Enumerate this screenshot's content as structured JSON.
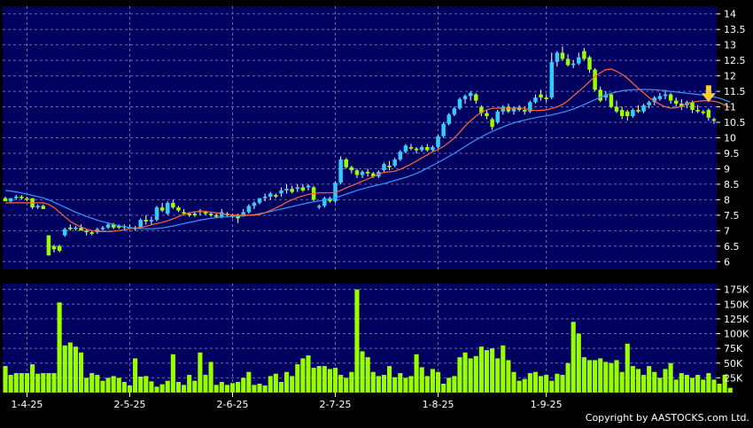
{
  "chart_data": [
    {
      "type": "candlestick",
      "title": "",
      "ylabel": "",
      "ylim": [
        5.75,
        14.25
      ],
      "y_ticks": [
        "14",
        "13.5",
        "13",
        "12.5",
        "12",
        "11.5",
        "11",
        "10.5",
        "10",
        "9.5",
        "9",
        "8.5",
        "8",
        "7.5",
        "7",
        "6.5",
        "6"
      ],
      "x_tick_labels": [
        "1-4-25",
        "2-5-25",
        "2-6-25",
        "2-7-25",
        "1-8-25",
        "1-9-25"
      ],
      "grid": true,
      "colors": {
        "background": "#000060",
        "up": "#33ccff",
        "down": "#99ff00",
        "ma_short": "#ff6633",
        "ma_long": "#3399ff",
        "grid": "#6a6aa8"
      },
      "candles": [
        [
          8.05,
          8.1,
          7.95,
          7.95
        ],
        [
          7.95,
          8.05,
          7.9,
          8.05
        ],
        [
          8.05,
          8.15,
          8.0,
          8.1
        ],
        [
          8.1,
          8.15,
          8.0,
          8.05
        ],
        [
          8.05,
          8.1,
          7.95,
          8.0
        ],
        [
          8.05,
          8.0,
          7.7,
          7.75
        ],
        [
          7.75,
          7.85,
          7.7,
          7.8
        ],
        [
          7.8,
          7.85,
          7.7,
          7.7
        ],
        [
          6.85,
          6.8,
          6.2,
          6.2
        ],
        [
          6.5,
          6.55,
          6.3,
          6.4
        ],
        [
          6.5,
          6.55,
          6.3,
          6.35
        ],
        [
          6.85,
          7.1,
          6.8,
          7.05
        ],
        [
          7.1,
          7.2,
          7.0,
          7.05
        ],
        [
          7.05,
          7.15,
          7.0,
          7.1
        ],
        [
          7.1,
          7.2,
          7.0,
          7.0
        ],
        [
          7.0,
          7.05,
          6.85,
          6.95
        ],
        [
          6.95,
          7.0,
          6.85,
          6.9
        ],
        [
          6.95,
          7.1,
          6.9,
          7.05
        ],
        [
          7.05,
          7.15,
          7.0,
          7.1
        ],
        [
          7.1,
          7.25,
          7.05,
          7.2
        ],
        [
          7.2,
          7.25,
          7.05,
          7.1
        ],
        [
          7.15,
          7.2,
          7.05,
          7.1
        ],
        [
          7.1,
          7.2,
          7.0,
          7.15
        ],
        [
          7.1,
          7.2,
          7.05,
          7.1
        ],
        [
          7.1,
          7.15,
          7.0,
          7.05
        ],
        [
          7.1,
          7.4,
          7.05,
          7.35
        ],
        [
          7.35,
          7.5,
          7.2,
          7.3
        ],
        [
          7.3,
          7.45,
          7.2,
          7.35
        ],
        [
          7.35,
          7.8,
          7.3,
          7.75
        ],
        [
          7.75,
          7.9,
          7.6,
          7.65
        ],
        [
          7.55,
          7.95,
          7.5,
          7.9
        ],
        [
          7.9,
          8.0,
          7.7,
          7.75
        ],
        [
          7.75,
          7.8,
          7.6,
          7.65
        ],
        [
          7.6,
          7.7,
          7.5,
          7.55
        ],
        [
          7.55,
          7.6,
          7.45,
          7.5
        ],
        [
          7.55,
          7.6,
          7.45,
          7.5
        ],
        [
          7.6,
          7.7,
          7.5,
          7.65
        ],
        [
          7.6,
          7.65,
          7.5,
          7.55
        ],
        [
          7.55,
          7.6,
          7.45,
          7.5
        ],
        [
          7.5,
          7.55,
          7.4,
          7.45
        ],
        [
          7.45,
          7.7,
          7.4,
          7.6
        ],
        [
          7.55,
          7.6,
          7.45,
          7.5
        ],
        [
          7.5,
          7.55,
          7.4,
          7.5
        ],
        [
          7.5,
          7.55,
          7.25,
          7.4
        ],
        [
          7.5,
          7.7,
          7.45,
          7.6
        ],
        [
          7.6,
          7.85,
          7.55,
          7.8
        ],
        [
          7.8,
          7.95,
          7.7,
          7.9
        ],
        [
          7.9,
          8.05,
          7.85,
          8.05
        ],
        [
          8.05,
          8.2,
          7.95,
          8.1
        ],
        [
          8.1,
          8.25,
          8.0,
          8.2
        ],
        [
          8.15,
          8.2,
          8.05,
          8.1
        ],
        [
          8.2,
          8.4,
          8.1,
          8.3
        ],
        [
          8.3,
          8.5,
          8.2,
          8.35
        ],
        [
          8.35,
          8.45,
          8.2,
          8.25
        ],
        [
          8.35,
          8.5,
          8.25,
          8.4
        ],
        [
          8.4,
          8.5,
          8.25,
          8.3
        ],
        [
          8.4,
          8.5,
          8.3,
          8.45
        ],
        [
          8.4,
          8.45,
          7.95,
          8.0
        ],
        [
          7.8,
          7.85,
          7.7,
          7.8
        ],
        [
          7.8,
          8.1,
          7.75,
          8.05
        ],
        [
          8.05,
          8.1,
          7.9,
          7.95
        ],
        [
          7.95,
          8.6,
          7.9,
          8.55
        ],
        [
          8.55,
          9.4,
          8.5,
          9.3
        ],
        [
          9.3,
          9.35,
          9.0,
          9.05
        ],
        [
          9.05,
          9.1,
          8.85,
          8.95
        ],
        [
          8.95,
          9.0,
          8.7,
          8.8
        ],
        [
          8.8,
          8.95,
          8.7,
          8.9
        ],
        [
          8.9,
          9.0,
          8.75,
          8.85
        ],
        [
          8.85,
          8.9,
          8.7,
          8.75
        ],
        [
          8.75,
          8.95,
          8.7,
          8.9
        ],
        [
          8.95,
          9.2,
          8.9,
          9.15
        ],
        [
          9.1,
          9.25,
          8.95,
          9.05
        ],
        [
          9.1,
          9.35,
          9.05,
          9.3
        ],
        [
          9.3,
          9.6,
          9.25,
          9.55
        ],
        [
          9.55,
          9.8,
          9.5,
          9.75
        ],
        [
          9.7,
          9.8,
          9.6,
          9.65
        ],
        [
          9.65,
          9.7,
          9.5,
          9.6
        ],
        [
          9.6,
          9.75,
          9.55,
          9.7
        ],
        [
          9.7,
          9.8,
          9.55,
          9.6
        ],
        [
          9.6,
          9.75,
          9.55,
          9.7
        ],
        [
          9.7,
          10.1,
          9.65,
          10.05
        ],
        [
          10.05,
          10.5,
          10.0,
          10.45
        ],
        [
          10.45,
          10.8,
          10.4,
          10.75
        ],
        [
          10.75,
          11.0,
          10.7,
          10.95
        ],
        [
          10.95,
          11.3,
          10.9,
          11.25
        ],
        [
          11.25,
          11.4,
          11.1,
          11.35
        ],
        [
          11.35,
          11.5,
          11.2,
          11.45
        ],
        [
          11.4,
          11.45,
          11.1,
          11.2
        ],
        [
          11.0,
          11.05,
          10.7,
          10.8
        ],
        [
          10.8,
          10.9,
          10.6,
          10.7
        ],
        [
          10.6,
          10.65,
          10.25,
          10.35
        ],
        [
          10.5,
          10.9,
          10.45,
          10.85
        ],
        [
          10.85,
          11.05,
          10.75,
          11.0
        ],
        [
          11.0,
          11.1,
          10.8,
          10.85
        ],
        [
          10.85,
          11.0,
          10.75,
          10.95
        ],
        [
          10.95,
          11.05,
          10.85,
          10.9
        ],
        [
          10.9,
          11.0,
          10.75,
          10.85
        ],
        [
          10.85,
          11.2,
          10.8,
          11.15
        ],
        [
          11.15,
          11.4,
          11.1,
          11.3
        ],
        [
          11.4,
          11.55,
          11.2,
          11.3
        ],
        [
          11.3,
          11.4,
          11.15,
          11.25
        ],
        [
          11.3,
          12.75,
          11.25,
          12.45
        ],
        [
          12.45,
          12.8,
          12.3,
          12.75
        ],
        [
          12.75,
          12.95,
          12.5,
          12.55
        ],
        [
          12.55,
          12.7,
          12.3,
          12.35
        ],
        [
          12.35,
          12.5,
          12.25,
          12.4
        ],
        [
          12.4,
          12.75,
          12.35,
          12.6
        ],
        [
          12.8,
          12.9,
          12.5,
          12.55
        ],
        [
          12.6,
          12.65,
          12.1,
          12.2
        ],
        [
          12.2,
          12.25,
          11.5,
          11.55
        ],
        [
          11.55,
          11.65,
          11.15,
          11.2
        ],
        [
          11.3,
          11.5,
          11.2,
          11.4
        ],
        [
          11.4,
          11.45,
          10.95,
          11.0
        ],
        [
          11.0,
          11.2,
          10.8,
          10.85
        ],
        [
          10.9,
          11.0,
          10.6,
          10.7
        ],
        [
          10.85,
          10.9,
          10.55,
          10.7
        ],
        [
          10.7,
          10.95,
          10.65,
          10.9
        ],
        [
          10.9,
          11.05,
          10.8,
          10.85
        ],
        [
          10.85,
          11.1,
          10.8,
          11.05
        ],
        [
          11.05,
          11.2,
          10.95,
          11.15
        ],
        [
          11.15,
          11.35,
          11.05,
          11.3
        ],
        [
          11.25,
          11.45,
          11.2,
          11.35
        ],
        [
          11.35,
          11.55,
          11.25,
          11.4
        ],
        [
          11.4,
          11.45,
          11.1,
          11.2
        ],
        [
          11.2,
          11.3,
          11.0,
          11.1
        ],
        [
          11.1,
          11.25,
          10.9,
          11.0
        ],
        [
          11.05,
          11.2,
          10.95,
          11.15
        ],
        [
          11.15,
          11.2,
          10.8,
          10.9
        ],
        [
          10.9,
          11.05,
          10.8,
          10.85
        ],
        [
          10.85,
          10.9,
          10.75,
          10.8
        ],
        [
          10.9,
          10.95,
          10.55,
          10.65
        ],
        [
          10.6,
          10.65,
          10.45,
          10.55
        ]
      ],
      "ma_short": [
        7.9,
        7.9,
        7.9,
        7.9,
        7.9,
        7.9,
        7.9,
        7.9,
        7.85,
        7.75,
        7.6,
        7.45,
        7.3,
        7.2,
        7.12,
        7.05,
        7.0,
        6.98,
        6.97,
        6.97,
        6.98,
        7.0,
        7.03,
        7.07,
        7.08,
        7.1,
        7.14,
        7.19,
        7.23,
        7.27,
        7.32,
        7.38,
        7.45,
        7.53,
        7.58,
        7.61,
        7.62,
        7.62,
        7.6,
        7.58,
        7.55,
        7.52,
        7.51,
        7.5,
        7.5,
        7.5,
        7.5,
        7.52,
        7.58,
        7.65,
        7.73,
        7.82,
        7.92,
        8.0,
        8.07,
        8.12,
        8.17,
        8.2,
        8.22,
        8.22,
        8.22,
        8.24,
        8.3,
        8.38,
        8.45,
        8.52,
        8.6,
        8.67,
        8.75,
        8.82,
        8.88,
        8.9,
        8.92,
        8.98,
        9.06,
        9.15,
        9.25,
        9.35,
        9.45,
        9.55,
        9.62,
        9.72,
        9.85,
        10.0,
        10.18,
        10.38,
        10.55,
        10.7,
        10.82,
        10.9,
        10.95,
        10.96,
        10.96,
        10.95,
        10.96,
        10.97,
        10.95,
        10.9,
        10.88,
        10.89,
        10.9,
        10.95,
        11.0,
        11.08,
        11.2,
        11.35,
        11.5,
        11.65,
        11.82,
        11.98,
        12.1,
        12.2,
        12.22,
        12.15,
        12.05,
        11.92,
        11.76,
        11.6,
        11.45,
        11.3,
        11.18,
        11.08,
        11.0,
        10.96,
        10.97,
        11.02,
        11.1,
        11.15,
        11.18,
        11.2,
        11.2,
        11.18,
        11.14,
        11.05,
        10.98
      ],
      "ma_long": [
        8.3,
        8.28,
        8.25,
        8.22,
        8.18,
        8.14,
        8.1,
        8.06,
        8.0,
        7.92,
        7.84,
        7.76,
        7.68,
        7.6,
        7.53,
        7.46,
        7.4,
        7.34,
        7.29,
        7.25,
        7.2,
        7.16,
        7.13,
        7.1,
        7.08,
        7.07,
        7.06,
        7.06,
        7.07,
        7.09,
        7.12,
        7.15,
        7.19,
        7.23,
        7.27,
        7.3,
        7.34,
        7.37,
        7.4,
        7.42,
        7.44,
        7.45,
        7.46,
        7.47,
        7.48,
        7.5,
        7.52,
        7.55,
        7.58,
        7.62,
        7.66,
        7.7,
        7.74,
        7.78,
        7.82,
        7.86,
        7.9,
        7.93,
        7.96,
        7.99,
        8.02,
        8.06,
        8.12,
        8.18,
        8.24,
        8.3,
        8.35,
        8.4,
        8.44,
        8.48,
        8.52,
        8.57,
        8.62,
        8.67,
        8.72,
        8.78,
        8.85,
        8.93,
        9.02,
        9.11,
        9.2,
        9.3,
        9.4,
        9.5,
        9.61,
        9.72,
        9.83,
        9.93,
        10.03,
        10.12,
        10.2,
        10.28,
        10.35,
        10.42,
        10.48,
        10.53,
        10.57,
        10.61,
        10.65,
        10.68,
        10.71,
        10.74,
        10.78,
        10.82,
        10.87,
        10.93,
        11.0,
        11.07,
        11.15,
        11.23,
        11.31,
        11.38,
        11.44,
        11.48,
        11.52,
        11.54,
        11.55,
        11.56,
        11.56,
        11.56,
        11.55,
        11.54,
        11.52,
        11.5,
        11.48,
        11.46,
        11.44,
        11.42,
        11.4,
        11.38,
        11.35,
        11.32,
        11.28,
        11.22,
        11.15
      ],
      "marker": "latest"
    },
    {
      "type": "bar",
      "title": "",
      "ylabel": "",
      "ylim": [
        0,
        185000
      ],
      "y_ticks": [
        "175K",
        "150K",
        "125K",
        "100K",
        "75K",
        "50K",
        "25K"
      ],
      "values": [
        45000,
        30000,
        33000,
        33000,
        33000,
        48000,
        32000,
        33000,
        33000,
        33000,
        153000,
        80000,
        85000,
        78000,
        68000,
        25000,
        33000,
        30000,
        20000,
        25000,
        28000,
        25000,
        18000,
        12000,
        58000,
        27000,
        28000,
        19000,
        10000,
        14000,
        20000,
        65000,
        18000,
        13000,
        30000,
        20000,
        68000,
        30000,
        52000,
        13000,
        18000,
        13000,
        16000,
        18000,
        25000,
        35000,
        13000,
        15000,
        12000,
        28000,
        32000,
        18000,
        35000,
        28000,
        48000,
        58000,
        63000,
        42000,
        45000,
        45000,
        40000,
        42000,
        30000,
        25000,
        35000,
        175000,
        70000,
        60000,
        35000,
        28000,
        30000,
        45000,
        26000,
        33000,
        25000,
        28000,
        65000,
        43000,
        28000,
        40000,
        35000,
        15000,
        25000,
        28000,
        60000,
        68000,
        58000,
        62000,
        78000,
        72000,
        75000,
        58000,
        80000,
        55000,
        35000,
        20000,
        23000,
        33000,
        35000,
        28000,
        30000,
        20000,
        32000,
        30000,
        50000,
        120000,
        100000,
        60000,
        55000,
        55000,
        58000,
        52000,
        50000,
        55000,
        35000,
        83000,
        45000,
        40000,
        30000,
        45000,
        35000,
        25000,
        40000,
        50000,
        22000,
        33000,
        30000,
        25000,
        30000,
        22000,
        33000,
        22000,
        15000,
        30000,
        8000
      ],
      "grid": true,
      "colors": {
        "background": "#000060",
        "bar": "#99ff00"
      }
    }
  ],
  "footer": {
    "copyright": "Copyright by AASTOCKS.com Ltd."
  }
}
